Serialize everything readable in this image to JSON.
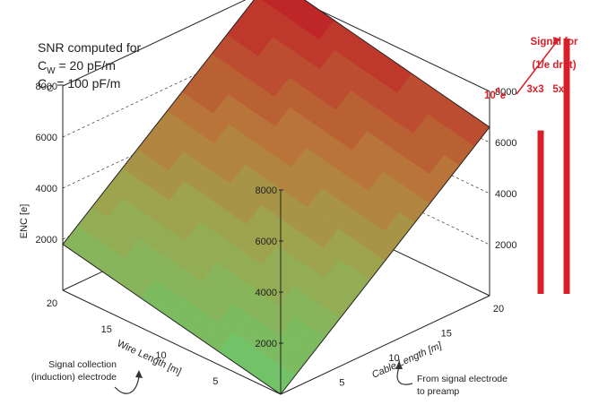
{
  "chart_data": {
    "type": "surface3d",
    "title_lines": [
      "SNR computed for",
      "C_W = 20 pF/m",
      "C_C = 100 pF/m"
    ],
    "annotation_title": {
      "main": "SNR computed for",
      "cw_main": "C",
      "cw_sub": "W",
      "cw_rest": " = 20 pF/m",
      "cc_main": "C",
      "cc_sub": "C",
      "cc_rest": " = 100 pF/m"
    },
    "zlabel": "ENC [e]",
    "xlabel": "Wire Length [m]",
    "ylabel": "Cable Length [m]",
    "zlim": [
      0,
      8000
    ],
    "z_ticks": [
      "8000",
      "6000",
      "4000",
      "2000"
    ],
    "x_ticks": [
      "20",
      "15",
      "10",
      "5"
    ],
    "y_ticks": [
      "5",
      "10",
      "15",
      "20"
    ],
    "corner_enc": {
      "wire0_cable0": 0,
      "wire20_cable0": 1800,
      "wire0_cable20": 6600,
      "wire20_cable20": 8400
    },
    "notes": {
      "wire": "Signal collection\n(induction) electrode",
      "cable": "From signal electrode\nto preamp"
    },
    "signal": {
      "title_lines": [
        "Signal for",
        "(1/e drift)"
      ],
      "bars": [
        {
          "label": "3x3",
          "value": 6400
        },
        {
          "label": "5x5",
          "value": 10000
        }
      ],
      "ref_label_base": "10",
      "ref_label_exp": "4",
      "ref_label_unit": "e"
    },
    "colors": {
      "low": "#6cc66a",
      "mid": "#b08a3c",
      "high": "#c01c25",
      "signal": "#d9202a"
    }
  }
}
